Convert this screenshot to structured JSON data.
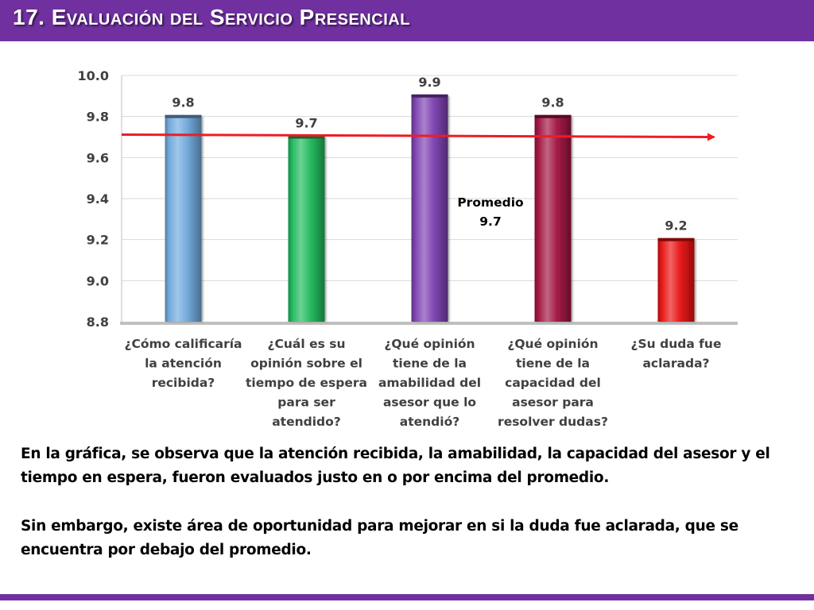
{
  "header": {
    "title": "17. Evaluación del Servicio Presencial"
  },
  "chart_data": {
    "type": "bar",
    "categories": [
      [
        "¿Cómo calificaría",
        "la atención",
        "recibida?"
      ],
      [
        "¿Cuál es su",
        "opinión sobre el",
        "tiempo de espera",
        "para ser",
        "atendido?"
      ],
      [
        "¿Qué opinión",
        "tiene de la",
        "amabilidad del",
        "asesor que lo",
        "atendió?"
      ],
      [
        "¿Qué opinión",
        "tiene de la",
        "capacidad del",
        "asesor para",
        "resolver dudas?"
      ],
      [
        "¿Su duda fue",
        "aclarada?"
      ]
    ],
    "values": [
      9.8,
      9.7,
      9.9,
      9.8,
      9.2
    ],
    "value_labels": [
      "9.8",
      "9.7",
      "9.9",
      "9.8",
      "9.2"
    ],
    "bar_colors": [
      "#6fa8dc",
      "#1eb85a",
      "#7b3fb0",
      "#a0123f",
      "#e81010"
    ],
    "ylim": [
      8.8,
      10.0
    ],
    "yticks": [
      8.8,
      9.0,
      9.2,
      9.4,
      9.6,
      9.8,
      10.0
    ],
    "ytick_labels": [
      "8.8",
      "9.0",
      "9.2",
      "9.4",
      "9.6",
      "9.8",
      "10.0"
    ],
    "grid": true,
    "average": {
      "value": 9.7,
      "label_line1": "Promedio",
      "label_line2": "9.7",
      "color": "#ee1c25"
    }
  },
  "text": {
    "paragraph1": "En la gráfica, se observa que la atención recibida, la amabilidad, la capacidad del asesor y el tiempo en espera, fueron evaluados justo en o por encima del promedio.",
    "paragraph2": "Sin embargo, existe área de oportunidad para mejorar en si la duda fue aclarada, que se encuentra por debajo del promedio."
  },
  "colors": {
    "accent": "#7030a0"
  }
}
